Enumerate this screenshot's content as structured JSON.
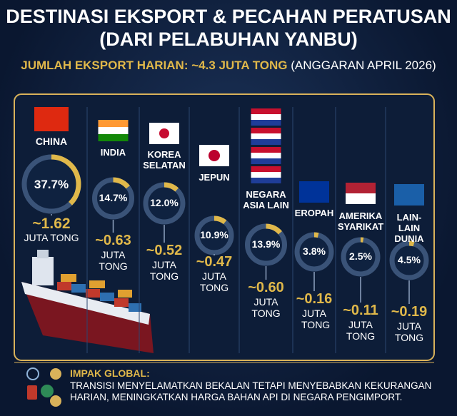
{
  "header": {
    "title_line1": "DESTINASI EKSPORT & PECAHAN PERATUSAN",
    "title_line2": "(DARI PELABUHAN YANBU)",
    "subtitle": "JUMLAH EKSPORT HARIAN: ~4.3 JUTA TONG",
    "subtitle_note": "(ANGGARAN APRIL 2026)"
  },
  "destinations": [
    {
      "name": "CHINA",
      "share": 37.7,
      "share_label": "37.7%",
      "volume": "~1.62",
      "unit": "JUTA TONG"
    },
    {
      "name": "INDIA",
      "share": 14.7,
      "share_label": "14.7%",
      "volume": "~0.63",
      "unit": "JUTA TONG"
    },
    {
      "name": "KOREA SELATAN",
      "share": 12.0,
      "share_label": "12.0%",
      "volume": "~0.52",
      "unit": "JUTA TONG"
    },
    {
      "name": "JEPUN",
      "share": 10.9,
      "share_label": "10.9%",
      "volume": "~0.47",
      "unit": "JUTA TONG"
    },
    {
      "name": "NEGARA ASIA LAIN",
      "share": 13.9,
      "share_label": "13.9%",
      "volume": "~0.60",
      "unit": "JUTA TONG"
    },
    {
      "name": "EROPAH",
      "share": 3.8,
      "share_label": "3.8%",
      "volume": "~0.16",
      "unit": "JUTA TONG"
    },
    {
      "name": "AMERIKA SYARIKAT",
      "share": 2.5,
      "share_label": "2.5%",
      "volume": "~0.11",
      "unit": "JUTA TONG"
    },
    {
      "name": "LAIN-LAIN DUNIA",
      "share": 4.5,
      "share_label": "4.5%",
      "volume": "~0.19",
      "unit": "JUTA TONG"
    }
  ],
  "impact": {
    "title": "IMPAK GLOBAL:",
    "text": "TRANSISI MENYELAMATKAN BEKALAN TETAPI MENYEBABKAN KEKURANGAN HARIAN, MENINGKATKAN HARGA BAHAN API DI NEGARA PENGIMPORT."
  }
}
